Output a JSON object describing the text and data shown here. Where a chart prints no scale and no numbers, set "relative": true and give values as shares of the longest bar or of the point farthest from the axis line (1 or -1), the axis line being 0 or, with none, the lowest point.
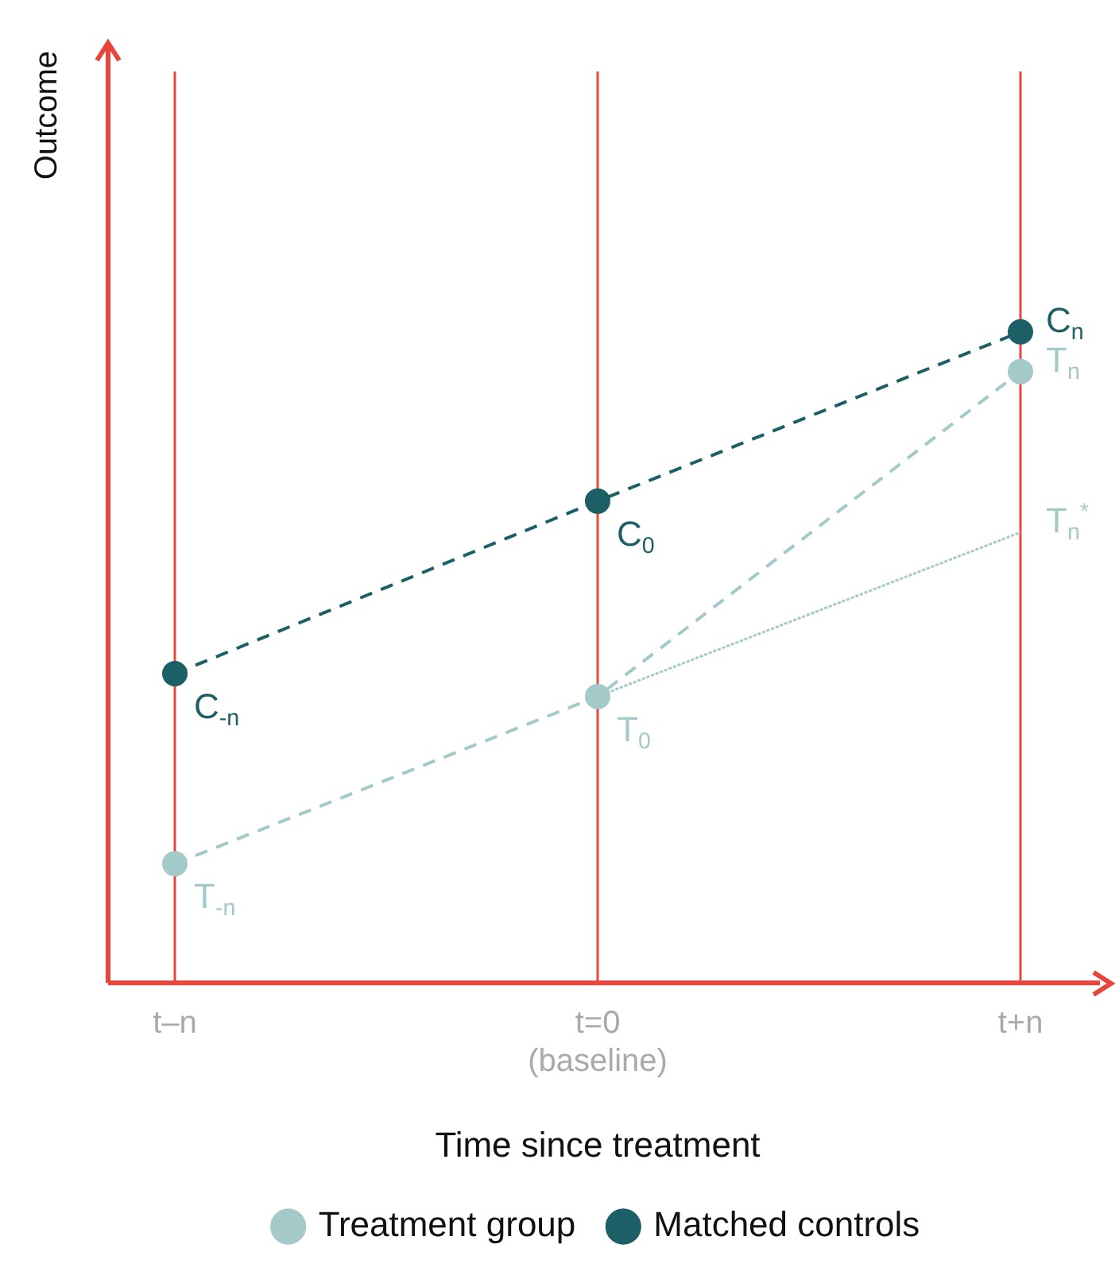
{
  "chart_data": {
    "type": "line",
    "relative": true,
    "xlabel": "Time since treatment",
    "ylabel": "Outcome",
    "categories": [
      "t–n",
      "t=0\n(baseline)",
      "t+n"
    ],
    "series": [
      {
        "name": "Treatment group",
        "color": "#a3c9c9",
        "values": [
          0.183,
          0.44,
          0.939
        ],
        "line_style": "dashed",
        "marker": "circle"
      },
      {
        "name": "Matched controls",
        "color": "#1d5f66",
        "values": [
          0.475,
          0.74,
          1
        ],
        "line_style": "dashed",
        "marker": "circle"
      },
      {
        "color": "#a3c9c9",
        "values": [
          null,
          0.44,
          0.692
        ],
        "line_style": "dotted",
        "marker": "none"
      }
    ],
    "annotations": [
      {
        "text": "C$_{-n}$",
        "x": "t–n",
        "y": 0.475
      },
      {
        "text": "C$_{0}$",
        "x": "t=0\n(baseline)",
        "y": 0.74
      },
      {
        "text": "C$_{n}$",
        "x": "t+n",
        "y": 1
      },
      {
        "text": "T$_{-n}$",
        "x": "t–n",
        "y": 0.183
      },
      {
        "text": "T$_{0}$",
        "x": "t=0\n(baseline)",
        "y": 0.44
      },
      {
        "text": "T$_{n}$",
        "x": "t+n",
        "y": 0.939
      },
      {
        "text": "T$_{n}$$^{*}$",
        "x": "t+n",
        "y": 0.692
      }
    ],
    "grid": "x",
    "legend": "bottom"
  }
}
